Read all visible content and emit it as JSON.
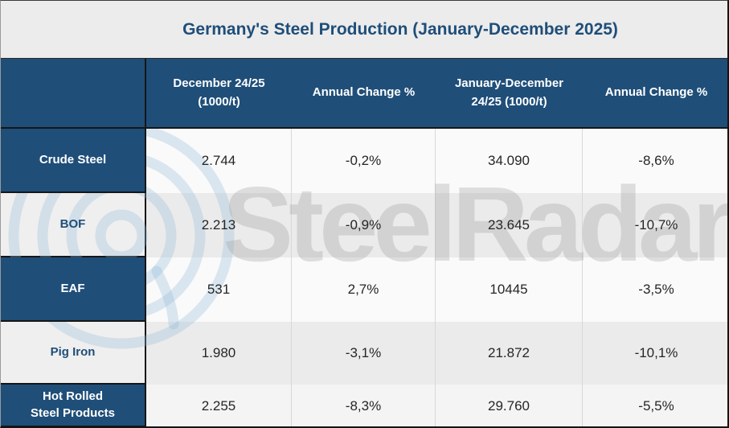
{
  "title": "Germany's Steel Production (January-December 2025)",
  "watermark": {
    "text": "SteelRadar",
    "logo_icon": "radar-rings-icon"
  },
  "chart_data": {
    "type": "table",
    "title": "Germany's Steel Production (January-December 2025)",
    "columns": [
      "",
      "December 24/25 (1000/t)",
      "Annual Change %",
      "January-December 24/25 (1000/t)",
      "Annual Change %"
    ],
    "rows": [
      {
        "label": "Crude Steel",
        "label_style": "dark",
        "band": "light",
        "values": [
          "2.744",
          "-0,2%",
          "34.090",
          "-8,6%"
        ]
      },
      {
        "label": "BOF",
        "label_style": "light",
        "band": "gray",
        "values": [
          "2.213",
          "-0,9%",
          "23.645",
          "-10,7%"
        ]
      },
      {
        "label": "EAF",
        "label_style": "dark",
        "band": "light",
        "values": [
          "531",
          "2,7%",
          "10445",
          "-3,5%"
        ]
      },
      {
        "label": "Pig Iron",
        "label_style": "light",
        "band": "gray",
        "values": [
          "1.980",
          "-3,1%",
          "21.872",
          "-10,1%"
        ]
      },
      {
        "label": "Hot Rolled Steel Products",
        "label_style": "dark",
        "band": "soft",
        "values": [
          "2.255",
          "-8,3%",
          "29.760",
          "-5,5%"
        ]
      }
    ]
  },
  "colors": {
    "accent_blue": "#1F4E79",
    "title_text": "#1F4E79",
    "header_text": "#FFFFFF",
    "data_text": "#262626",
    "light_band": "#FAFAFA",
    "gray_band": "#EBEBEB",
    "soft_band": "#F4F4F4",
    "title_bar_bg": "#ECECEC",
    "watermark_text_gray": "#9B9B9B",
    "watermark_logo_blue": "#8FB8D8",
    "dark_border": "#161616",
    "cell_divider": "#D8D8D8"
  }
}
